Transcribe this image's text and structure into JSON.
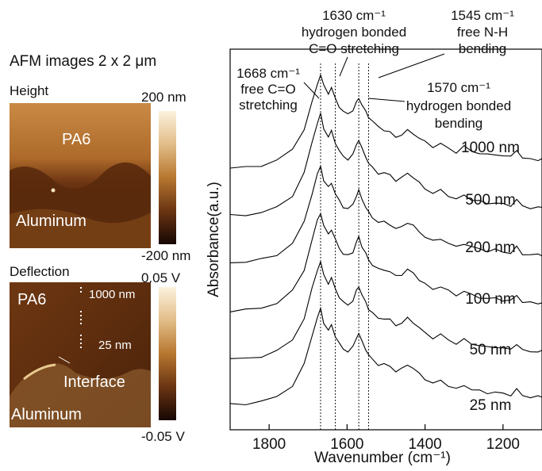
{
  "afm": {
    "title": "AFM images 2 x 2 μm",
    "height_panel": {
      "label": "Height",
      "scale_max": "200 nm",
      "scale_min": "-200 nm",
      "top_region": "PA6",
      "bottom_region": "Aluminum"
    },
    "deflection_panel": {
      "label": "Deflection",
      "scale_max": "0.05 V",
      "scale_min": "-0.05 V",
      "top_region": "PA6",
      "marker_top": "1000 nm",
      "marker_bottom": "25 nm",
      "interface_label": "Interface",
      "bottom_region": "Aluminum"
    }
  },
  "annotations": {
    "a1630_line1": "1630 cm⁻¹",
    "a1630_line2": "hydrogen bonded",
    "a1630_line3": "C=O stretching",
    "a1545_line1": "1545 cm⁻¹",
    "a1545_line2": "free N-H",
    "a1545_line3": "bending",
    "a1668_line1": "1668 cm⁻¹",
    "a1668_line2": "free C=O",
    "a1668_line3": "stretching",
    "a1570_line1": "1570 cm⁻¹",
    "a1570_line2": "hydrogen bonded",
    "a1570_line3": "bending"
  },
  "chart_data": {
    "type": "line",
    "xlabel": "Wavenumber (cm⁻¹)",
    "ylabel": "Absorbance(a.u.)",
    "xlim": [
      1900,
      1100
    ],
    "x_reversed": true,
    "x_ticks": [
      1800,
      1600,
      1400,
      1200
    ],
    "reference_lines": [
      1668,
      1630,
      1570,
      1545
    ],
    "x": [
      1900,
      1860,
      1820,
      1780,
      1740,
      1710,
      1690,
      1676,
      1668,
      1660,
      1648,
      1640,
      1630,
      1620,
      1610,
      1598,
      1585,
      1576,
      1570,
      1562,
      1552,
      1545,
      1535,
      1520,
      1505,
      1490,
      1475,
      1460,
      1445,
      1430,
      1415,
      1400,
      1380,
      1360,
      1340,
      1320,
      1300,
      1280,
      1260,
      1240,
      1220,
      1200,
      1180,
      1165,
      1150,
      1130,
      1110,
      1100
    ],
    "series": [
      {
        "name": "1000 nm",
        "values": [
          0.0,
          0.008,
          0.03,
          0.08,
          0.2,
          0.42,
          0.7,
          0.9,
          1.0,
          0.88,
          0.8,
          0.86,
          0.74,
          0.66,
          0.6,
          0.58,
          0.62,
          0.7,
          0.75,
          0.68,
          0.6,
          0.55,
          0.5,
          0.44,
          0.41,
          0.38,
          0.33,
          0.36,
          0.4,
          0.37,
          0.32,
          0.28,
          0.23,
          0.26,
          0.21,
          0.17,
          0.23,
          0.18,
          0.16,
          0.14,
          0.15,
          0.13,
          0.12,
          0.2,
          0.1,
          0.1,
          0.09,
          0.09
        ]
      },
      {
        "name": "500 nm",
        "values": [
          0.0,
          0.008,
          0.03,
          0.08,
          0.2,
          0.42,
          0.72,
          0.92,
          1.0,
          0.86,
          0.78,
          0.83,
          0.72,
          0.64,
          0.58,
          0.56,
          0.6,
          0.7,
          0.75,
          0.66,
          0.58,
          0.52,
          0.47,
          0.42,
          0.42,
          0.4,
          0.35,
          0.37,
          0.42,
          0.38,
          0.32,
          0.27,
          0.22,
          0.25,
          0.2,
          0.16,
          0.2,
          0.16,
          0.14,
          0.12,
          0.13,
          0.11,
          0.1,
          0.16,
          0.09,
          0.08,
          0.08,
          0.08
        ]
      },
      {
        "name": "200 nm",
        "values": [
          0.0,
          0.008,
          0.03,
          0.08,
          0.2,
          0.42,
          0.72,
          0.92,
          1.0,
          0.86,
          0.78,
          0.83,
          0.72,
          0.64,
          0.58,
          0.56,
          0.6,
          0.7,
          0.75,
          0.66,
          0.58,
          0.52,
          0.47,
          0.42,
          0.42,
          0.4,
          0.35,
          0.37,
          0.42,
          0.38,
          0.32,
          0.27,
          0.22,
          0.25,
          0.2,
          0.16,
          0.2,
          0.16,
          0.14,
          0.12,
          0.13,
          0.11,
          0.1,
          0.16,
          0.09,
          0.08,
          0.08,
          0.08
        ]
      },
      {
        "name": "100 nm",
        "values": [
          0.0,
          0.008,
          0.03,
          0.08,
          0.2,
          0.42,
          0.72,
          0.92,
          1.0,
          0.86,
          0.78,
          0.83,
          0.72,
          0.64,
          0.58,
          0.56,
          0.6,
          0.7,
          0.75,
          0.66,
          0.58,
          0.52,
          0.47,
          0.42,
          0.42,
          0.4,
          0.35,
          0.37,
          0.42,
          0.38,
          0.32,
          0.27,
          0.22,
          0.25,
          0.2,
          0.16,
          0.2,
          0.16,
          0.14,
          0.12,
          0.13,
          0.11,
          0.1,
          0.16,
          0.09,
          0.08,
          0.08,
          0.08
        ]
      },
      {
        "name": "50 nm",
        "values": [
          0.0,
          0.008,
          0.03,
          0.08,
          0.2,
          0.42,
          0.72,
          0.92,
          1.0,
          0.86,
          0.78,
          0.83,
          0.72,
          0.64,
          0.58,
          0.56,
          0.6,
          0.7,
          0.75,
          0.66,
          0.58,
          0.52,
          0.47,
          0.42,
          0.42,
          0.4,
          0.35,
          0.37,
          0.42,
          0.38,
          0.32,
          0.27,
          0.22,
          0.25,
          0.2,
          0.16,
          0.2,
          0.16,
          0.14,
          0.12,
          0.13,
          0.11,
          0.1,
          0.16,
          0.09,
          0.08,
          0.08,
          0.08
        ]
      },
      {
        "name": "25 nm",
        "values": [
          0.0,
          0.008,
          0.03,
          0.08,
          0.2,
          0.42,
          0.72,
          0.92,
          1.0,
          0.86,
          0.78,
          0.83,
          0.72,
          0.64,
          0.58,
          0.56,
          0.6,
          0.7,
          0.75,
          0.66,
          0.58,
          0.52,
          0.47,
          0.42,
          0.42,
          0.4,
          0.35,
          0.37,
          0.42,
          0.38,
          0.32,
          0.27,
          0.22,
          0.25,
          0.2,
          0.16,
          0.2,
          0.16,
          0.14,
          0.12,
          0.13,
          0.11,
          0.1,
          0.16,
          0.09,
          0.08,
          0.08,
          0.08
        ]
      }
    ],
    "grid": false,
    "legend": "none"
  }
}
